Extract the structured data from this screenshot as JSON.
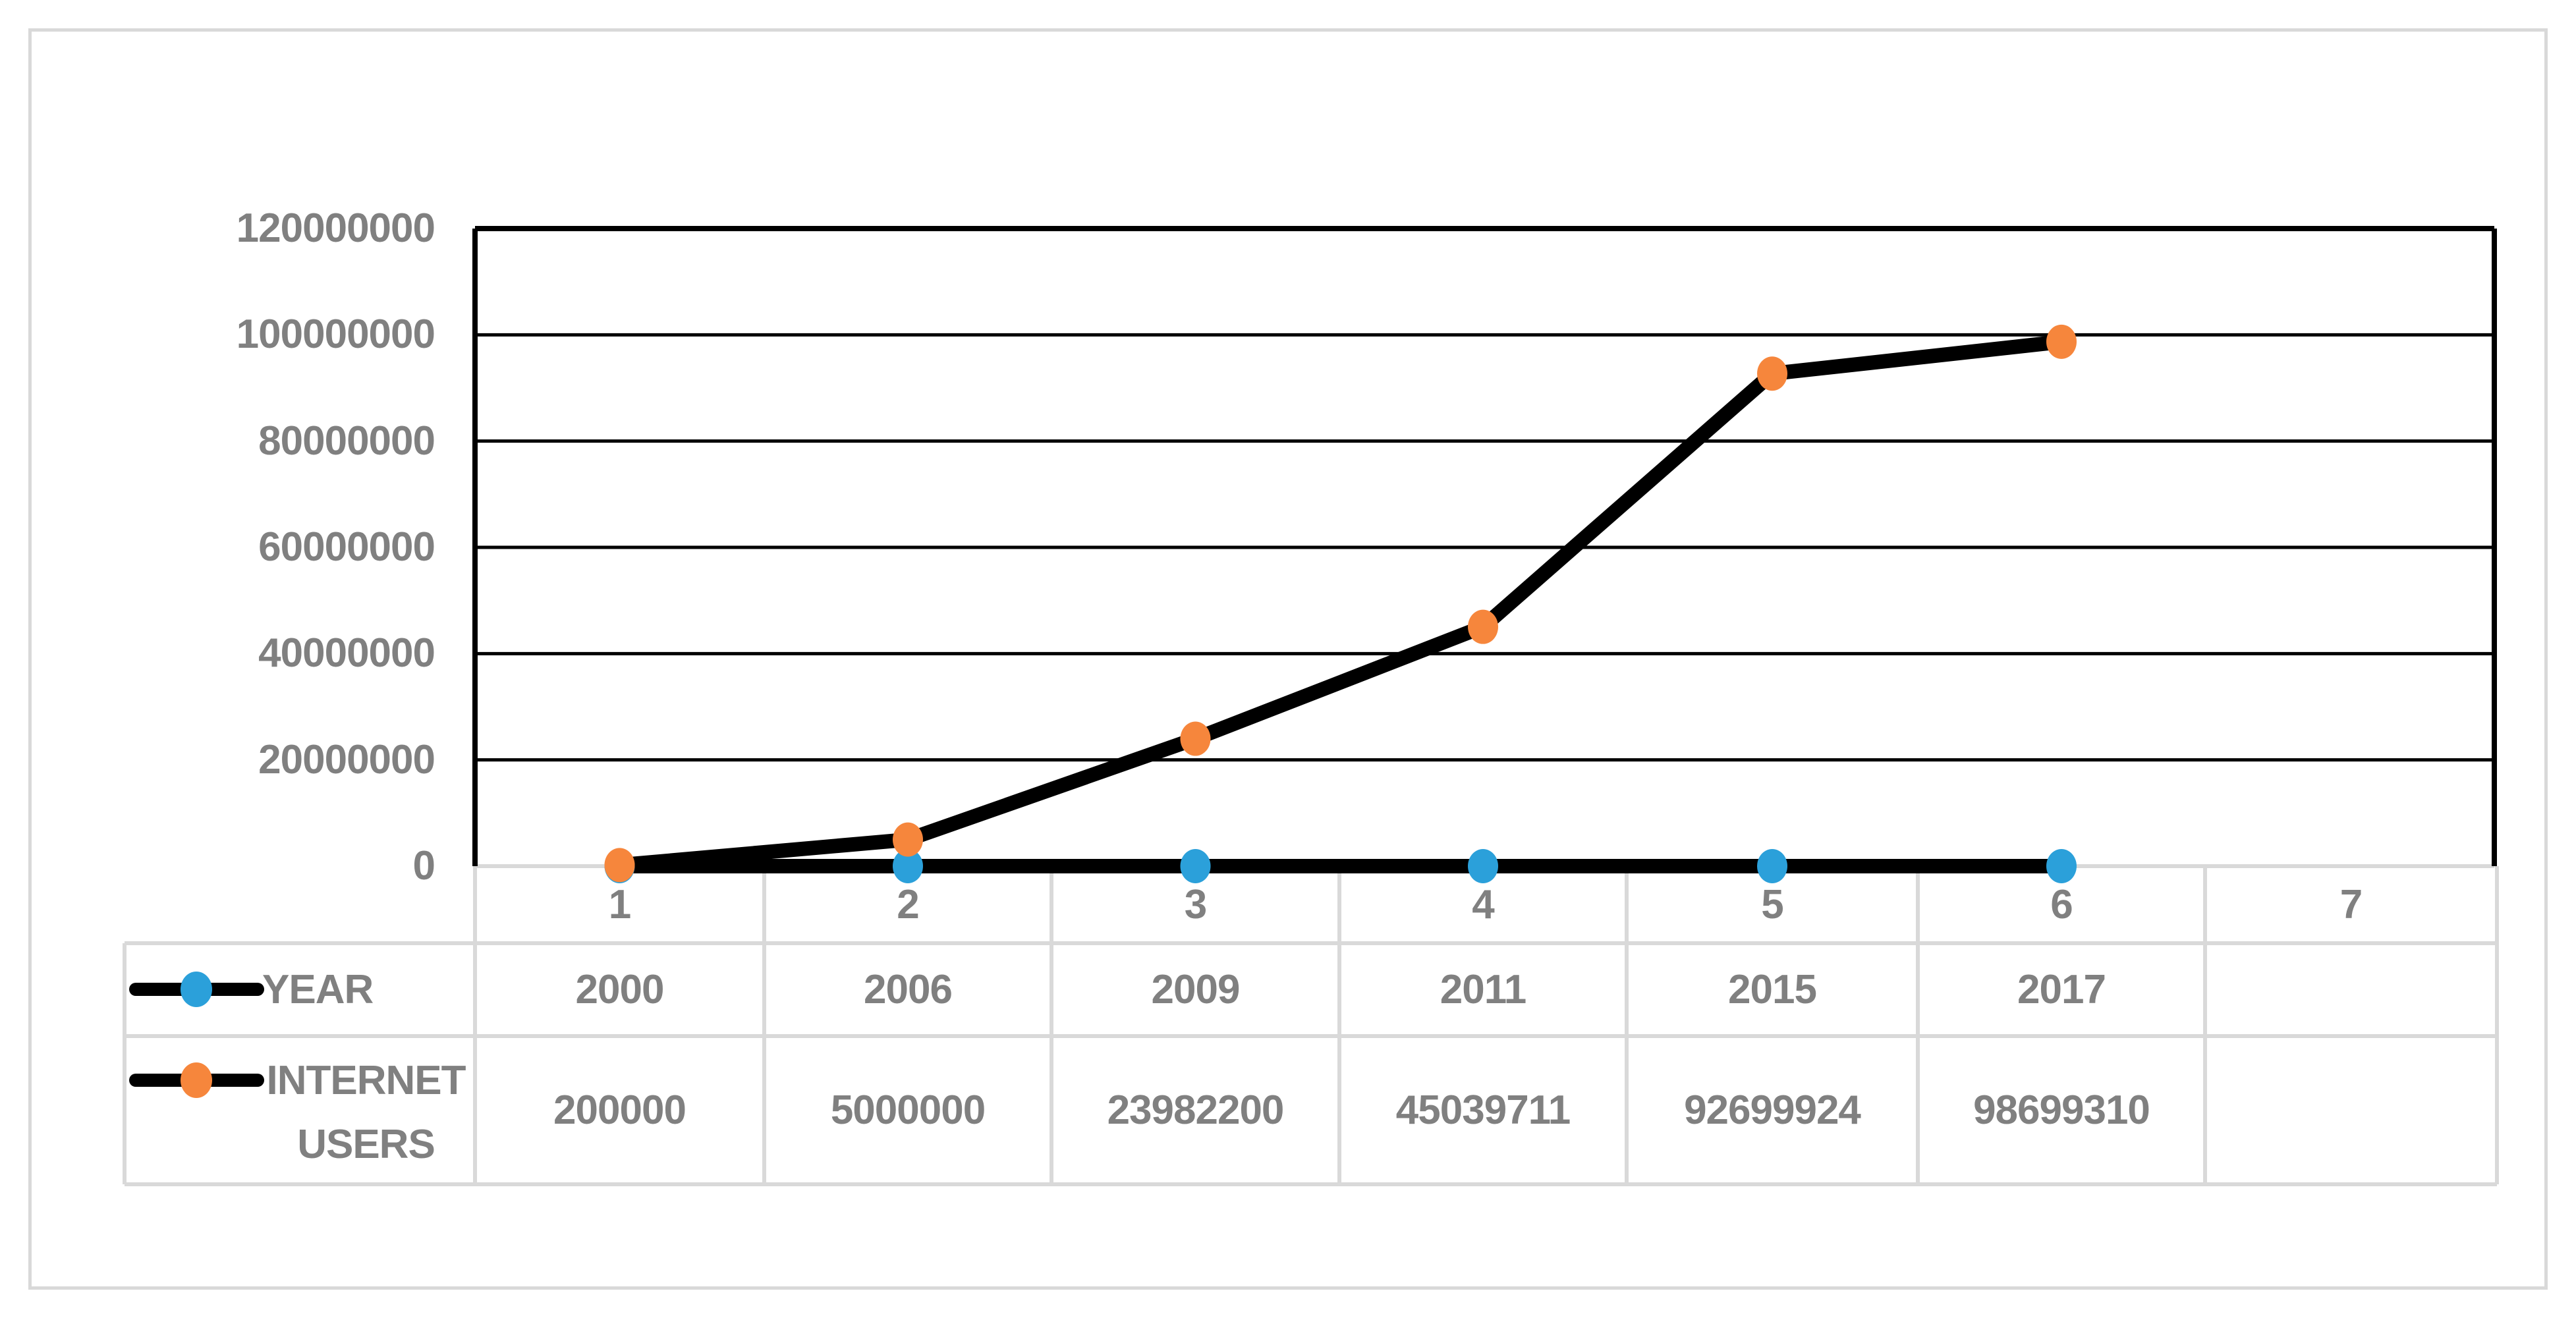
{
  "chart_data": {
    "type": "line",
    "title": "",
    "categories": [
      "1",
      "2",
      "3",
      "4",
      "5",
      "6",
      "7"
    ],
    "x_ticks": [
      "1",
      "2",
      "3",
      "4",
      "5",
      "6",
      "7"
    ],
    "y_ticks": [
      "120000000",
      "100000000",
      "80000000",
      "60000000",
      "40000000",
      "20000000",
      "0"
    ],
    "ylim": [
      0,
      120000000
    ],
    "gridlines": "horizontal",
    "gridline_color": "#000000",
    "axis_line_color": "#d9d9d9",
    "line_color": "#000000",
    "legend_position": "table-left",
    "series": [
      {
        "name": "YEAR",
        "marker_color": "#2ba0da",
        "values": [
          2000,
          2006,
          2009,
          2011,
          2015,
          2017
        ]
      },
      {
        "name": "INTERNET USERS",
        "marker_color": "#f6863c",
        "values": [
          200000,
          5000000,
          23982200,
          45039711,
          92699924,
          98699310
        ]
      }
    ]
  },
  "legend": {
    "row1_label": "YEAR",
    "row2_line1": "INTERNET",
    "row2_line2": "USERS"
  },
  "table": {
    "years": [
      "2000",
      "2006",
      "2009",
      "2011",
      "2015",
      "2017",
      ""
    ],
    "users": [
      "200000",
      "5000000",
      "23982200",
      "45039711",
      "92699924",
      "98699310",
      ""
    ]
  },
  "colors": {
    "text_gray": "#808080",
    "grid_gray": "#d9d9d9",
    "series_black": "#000000",
    "marker_blue": "#2ba0da",
    "marker_orange": "#f6863c",
    "background": "#ffffff"
  }
}
